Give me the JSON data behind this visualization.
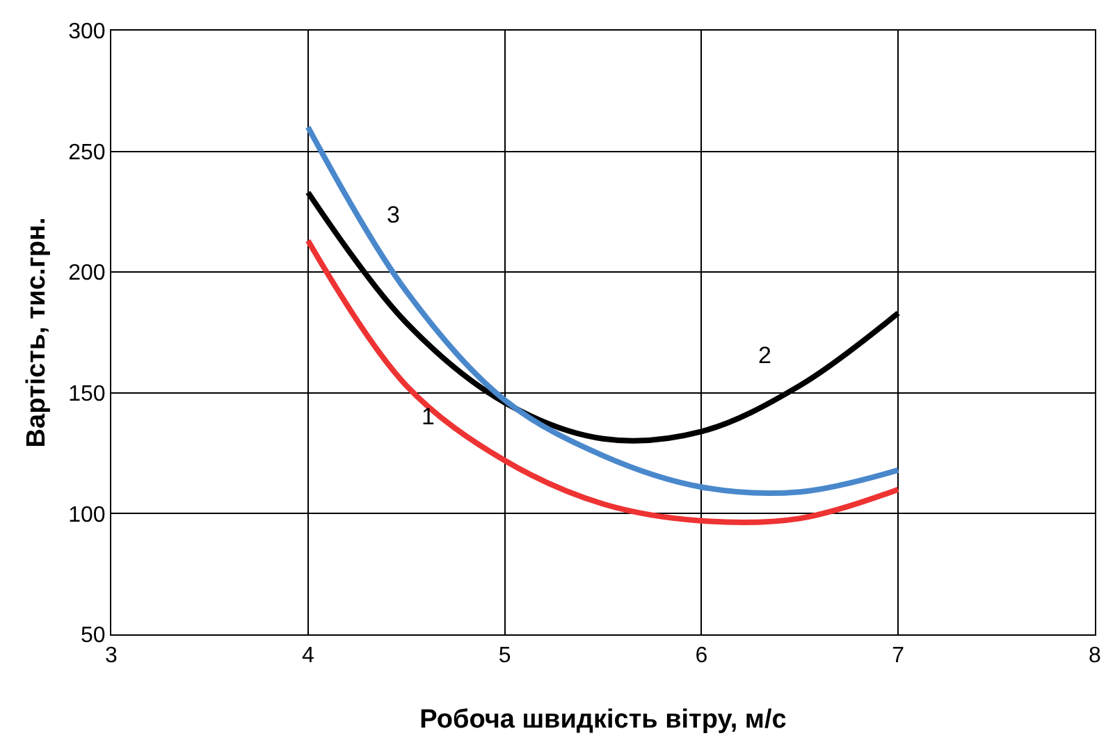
{
  "chart_data": {
    "type": "line",
    "xlabel": "Робоча швидкість вітру, м/с",
    "ylabel": "Вартість, тис.грн.",
    "x": [
      4,
      4.5,
      5,
      5.5,
      6,
      6.5,
      7
    ],
    "series": [
      {
        "name": "1",
        "color": "#ee3333",
        "values": [
          213,
          153,
          122,
          104,
          97,
          98,
          110
        ]
      },
      {
        "name": "2",
        "color": "#000000",
        "values": [
          233,
          179,
          146,
          131,
          134,
          153,
          183
        ]
      },
      {
        "name": "3",
        "color": "#4a88cc",
        "values": [
          260,
          192,
          147,
          124,
          111,
          109,
          118
        ]
      }
    ],
    "xlim": [
      3,
      8
    ],
    "xticks": [
      3,
      4,
      5,
      6,
      7,
      8
    ],
    "ylim": [
      50,
      300
    ],
    "yticks": [
      50,
      100,
      150,
      200,
      250,
      300
    ],
    "grid": true,
    "legend": false,
    "marker": "none",
    "line_style": "solid"
  }
}
